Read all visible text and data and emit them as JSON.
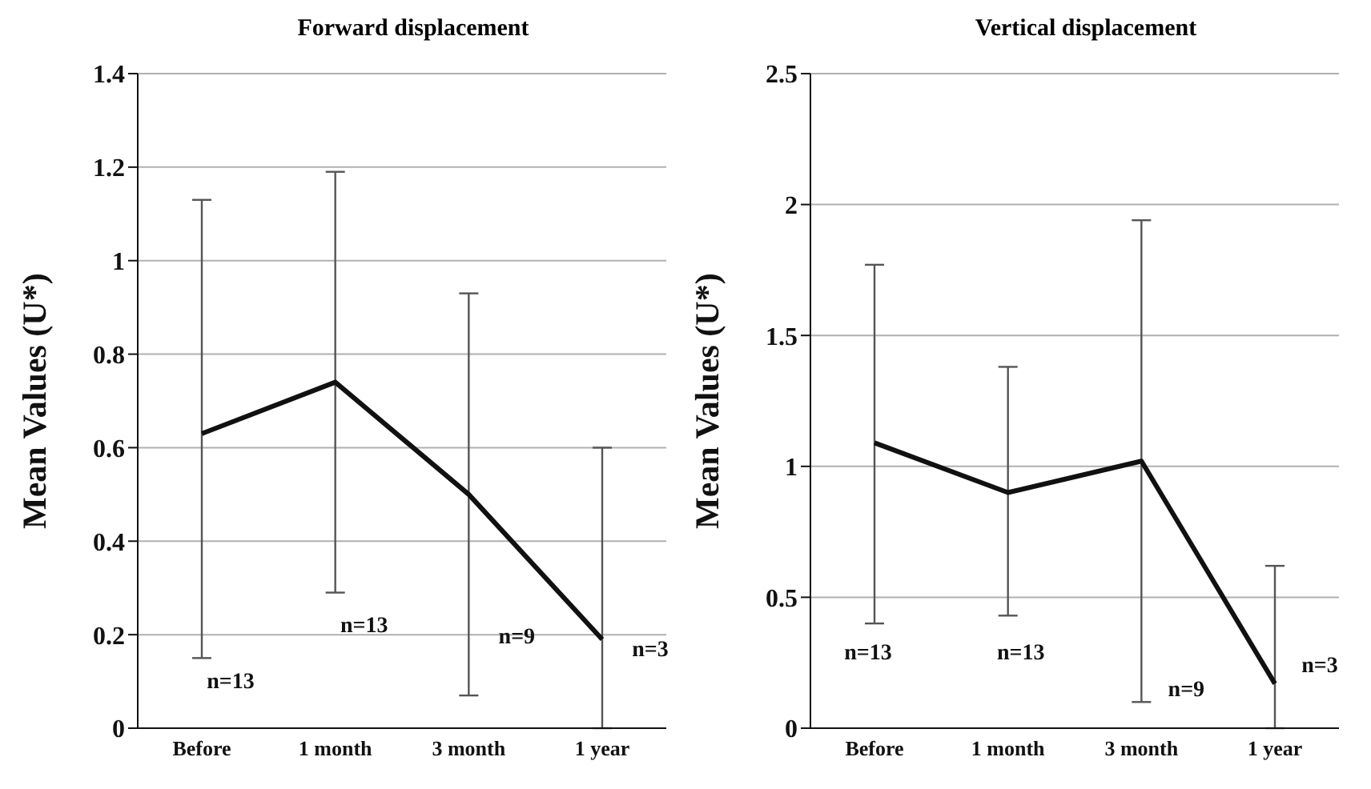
{
  "chart_data": [
    {
      "type": "line",
      "title": "Forward displacement",
      "ylabel": "Mean  Values  (U*)",
      "categories": [
        "Before",
        "1 month",
        "3 month",
        "1 year"
      ],
      "series": [
        {
          "color": "#111111",
          "values": [
            0.63,
            0.74,
            0.5,
            0.19
          ],
          "errors": [
            [
              0.15,
              1.13
            ],
            [
              0.29,
              1.19
            ],
            [
              0.07,
              0.93
            ],
            [
              0,
              0.6
            ]
          ]
        }
      ],
      "ylim": [
        0,
        1.4
      ],
      "yticks": [
        0,
        0.2,
        0.4,
        0.6,
        0.8,
        1,
        1.2,
        1.4
      ],
      "grid": "y",
      "legend": false,
      "marker": "none",
      "line_style": "solid",
      "annotations": [
        "n=13",
        "n=13",
        "n=9",
        "n=3"
      ]
    },
    {
      "type": "line",
      "title": "Vertical   displacement",
      "ylabel": "Mean  Values  (U*)",
      "categories": [
        "Before",
        "1 month",
        "3 month",
        "1 year"
      ],
      "series": [
        {
          "color": "#111111",
          "values": [
            1.09,
            0.9,
            1.02,
            0.17
          ],
          "errors": [
            [
              0.4,
              1.77
            ],
            [
              0.43,
              1.38
            ],
            [
              0.1,
              1.94
            ],
            [
              0,
              0.62
            ]
          ]
        }
      ],
      "ylim": [
        0,
        2.5
      ],
      "yticks": [
        0,
        0.5,
        1,
        1.5,
        2,
        2.5
      ],
      "grid": "y",
      "legend": false,
      "marker": "none",
      "line_style": "solid",
      "annotations": [
        "n=13",
        "n=13",
        "n=9",
        "n=3"
      ]
    }
  ]
}
